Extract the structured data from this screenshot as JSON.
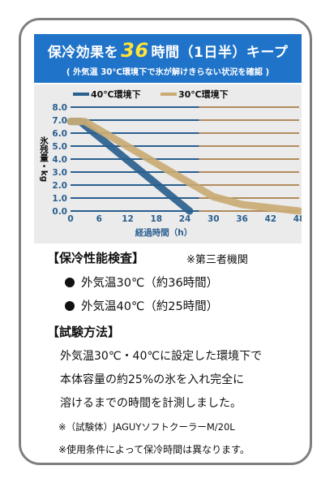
{
  "banner": {
    "title_pre": "保冷効果を",
    "title_num": "36",
    "title_post": "時間（1日半）キープ",
    "subtitle": "( 外気温 30℃環境下で氷が解けきらない状況を確認 )"
  },
  "chart_data": {
    "type": "line",
    "x": [
      0,
      6,
      12,
      18,
      24,
      30,
      36,
      42,
      48
    ],
    "xlim": [
      0,
      48
    ],
    "ylim": [
      0,
      8
    ],
    "xlabel": "経過時間（h）",
    "ylabel": "氷残量・kg",
    "x_ticks": [
      "0",
      "6",
      "12",
      "18",
      "24",
      "30",
      "36",
      "42",
      "48"
    ],
    "y_ticks": [
      "0.0",
      "1.0",
      "2.0",
      "3.0",
      "4.0",
      "5.0",
      "6.0",
      "7.0",
      "8.0"
    ],
    "legend_position": "top-left",
    "grid": true,
    "series": [
      {
        "name": "40℃環境下",
        "color": "#2a5f8e",
        "points": [
          [
            0,
            6.9
          ],
          [
            2,
            6.9
          ],
          [
            25,
            0.0
          ]
        ]
      },
      {
        "name": "30℃環境下",
        "color": "#c9ab74",
        "points": [
          [
            0,
            6.9
          ],
          [
            3,
            6.9
          ],
          [
            30,
            1.1
          ],
          [
            36,
            0.5
          ],
          [
            48,
            0.0
          ]
        ]
      }
    ]
  },
  "sections": {
    "perf_title": "【保冷性能検査】",
    "third_party": "※第三者機関",
    "perf_items": [
      "外気温30℃（約36時間）",
      "外気温40℃（約25時間）"
    ],
    "method_title": "【試験方法】",
    "method_lines": [
      "外気温30℃・40℃に設定した環境下で",
      "本体容量の約25%の氷を入れ完全に",
      "溶けるまでの時間を計測しました。"
    ],
    "note_specimen": "※（試験体）JAGUYソフトクーラーM/20L",
    "note_conditions": "※使用条件によって保冷時間は異なります。"
  }
}
